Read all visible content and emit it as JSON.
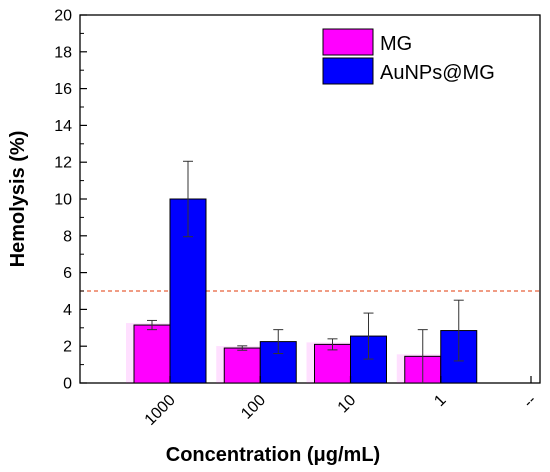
{
  "chart_data": {
    "type": "bar",
    "title": "",
    "xlabel": "Concentration (μg/mL)",
    "ylabel": "Hemolysis (%)",
    "categories": [
      "1000",
      "100",
      "10",
      "1"
    ],
    "extra_x_tick": "--",
    "ylim": [
      0,
      20
    ],
    "yticks": [
      0,
      2,
      4,
      6,
      8,
      10,
      12,
      14,
      16,
      18,
      20
    ],
    "series": [
      {
        "name": "MG",
        "color": "#ff00ff",
        "values": [
          3.15,
          1.9,
          2.1,
          1.45
        ],
        "errors": [
          0.25,
          0.12,
          0.3,
          1.45
        ]
      },
      {
        "name": "AuNPs@MG",
        "color": "#0000ff",
        "values": [
          10.0,
          2.25,
          2.55,
          2.85
        ],
        "errors": [
          2.05,
          0.65,
          1.25,
          1.65
        ]
      }
    ],
    "threshold": {
      "value": 5,
      "color": "#e8603a",
      "style": "dashed"
    },
    "legend_position": "top-right",
    "grid": false
  }
}
